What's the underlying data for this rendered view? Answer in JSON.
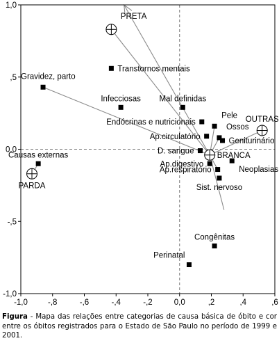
{
  "chart_data": {
    "type": "scatter",
    "title": "",
    "xlabel": "",
    "ylabel": "",
    "xlim": [
      -1.0,
      0.6
    ],
    "ylim": [
      -1.0,
      1.0
    ],
    "x_ticks": [
      {
        "value": -1.0,
        "label": "-1,0"
      },
      {
        "value": -0.8,
        "label": "-,8"
      },
      {
        "value": -0.6,
        "label": "-,6"
      },
      {
        "value": -0.4,
        "label": "-,4"
      },
      {
        "value": -0.2,
        "label": "-,2"
      },
      {
        "value": 0.0,
        "label": "0,0"
      },
      {
        "value": 0.2,
        "label": ",2"
      },
      {
        "value": 0.4,
        "label": ",4"
      },
      {
        "value": 0.6,
        "label": ",6"
      }
    ],
    "y_ticks": [
      {
        "value": 1.0,
        "label": "1,0"
      },
      {
        "value": 0.5,
        "label": ",5"
      },
      {
        "value": 0.0,
        "label": "0,0"
      },
      {
        "value": -0.5,
        "label": "-,5"
      },
      {
        "value": -1.0,
        "label": "-1,0"
      }
    ],
    "causes": [
      {
        "label": "Gravidez, parto",
        "x": -0.86,
        "y": 0.43,
        "anchor": "right-above"
      },
      {
        "label": "Transtornos mentais",
        "x": -0.43,
        "y": 0.56,
        "anchor": "right"
      },
      {
        "label": "Infecciosas",
        "x": -0.37,
        "y": 0.29,
        "anchor": "above"
      },
      {
        "label": "Mal definidas",
        "x": 0.02,
        "y": 0.29,
        "anchor": "above"
      },
      {
        "label": "Endócrinas e nutricionais",
        "x": 0.14,
        "y": 0.19,
        "anchor": "left"
      },
      {
        "label": "Pele",
        "x": 0.22,
        "y": 0.16,
        "anchor": "above-right"
      },
      {
        "label": "Ap.circulatório",
        "x": 0.17,
        "y": 0.09,
        "anchor": "left"
      },
      {
        "label": "Ossos",
        "x": 0.25,
        "y": 0.08,
        "anchor": "above-right"
      },
      {
        "label": "Geniturinário",
        "x": 0.27,
        "y": 0.06,
        "anchor": "right"
      },
      {
        "label": "D. sangue",
        "x": 0.13,
        "y": -0.01,
        "anchor": "left"
      },
      {
        "label": "Ap.digestivo",
        "x": 0.19,
        "y": -0.1,
        "anchor": "left"
      },
      {
        "label": "Ap.respiratório",
        "x": 0.24,
        "y": -0.14,
        "anchor": "left"
      },
      {
        "label": "Neoplasias",
        "x": 0.33,
        "y": -0.08,
        "anchor": "below-right"
      },
      {
        "label": "Sist. nervoso",
        "x": 0.25,
        "y": -0.2,
        "anchor": "below"
      },
      {
        "label": "Causas externas",
        "x": -0.89,
        "y": -0.1,
        "anchor": "above"
      },
      {
        "label": "Congênitas",
        "x": 0.22,
        "y": -0.67,
        "anchor": "above"
      },
      {
        "label": "Perinatal",
        "x": 0.06,
        "y": -0.8,
        "anchor": "above-left"
      }
    ],
    "colors": [
      {
        "label": "PRETA",
        "x": -0.43,
        "y": 0.83,
        "anchor": "above-right"
      },
      {
        "label": "OUTRAS",
        "x": 0.52,
        "y": 0.13,
        "anchor": "above"
      },
      {
        "label": "BRANCA",
        "x": 0.19,
        "y": -0.04,
        "anchor": "right"
      },
      {
        "label": "PARDA",
        "x": -0.93,
        "y": -0.17,
        "anchor": "below"
      }
    ],
    "vectors": [
      {
        "from": [
          0.19,
          -0.04
        ],
        "to": [
          -0.43,
          0.83
        ]
      },
      {
        "from": [
          0.19,
          -0.04
        ],
        "to": [
          -0.86,
          0.43
        ]
      },
      {
        "from": [
          -0.93,
          -0.17
        ],
        "to": [
          -0.89,
          -0.1
        ]
      },
      {
        "from": [
          0.19,
          -0.04
        ],
        "to": [
          0.25,
          0.08
        ]
      },
      {
        "from": [
          0.19,
          -0.04
        ],
        "to": [
          0.22,
          0.16
        ]
      },
      {
        "from": [
          0.19,
          -0.04
        ],
        "to": [
          0.52,
          0.13
        ]
      },
      {
        "from": [
          0.19,
          -0.04
        ],
        "to": [
          0.24,
          -0.14
        ]
      },
      {
        "from": [
          0.19,
          -0.04
        ],
        "to": [
          0.28,
          -0.42
        ]
      },
      {
        "from": [
          0.19,
          -0.04
        ],
        "to": [
          -0.35,
          1.0
        ]
      }
    ],
    "reference_lines": {
      "x": 0.0,
      "y": 0.0,
      "style": "dashed"
    },
    "grid": false,
    "legend": "none"
  },
  "caption": {
    "label": "Figura",
    "text": " - Mapa das relações entre categorias de causa básica de óbito e cor entre os óbitos registrados para o Estado de São Paulo no período de 1999 e 2001."
  }
}
